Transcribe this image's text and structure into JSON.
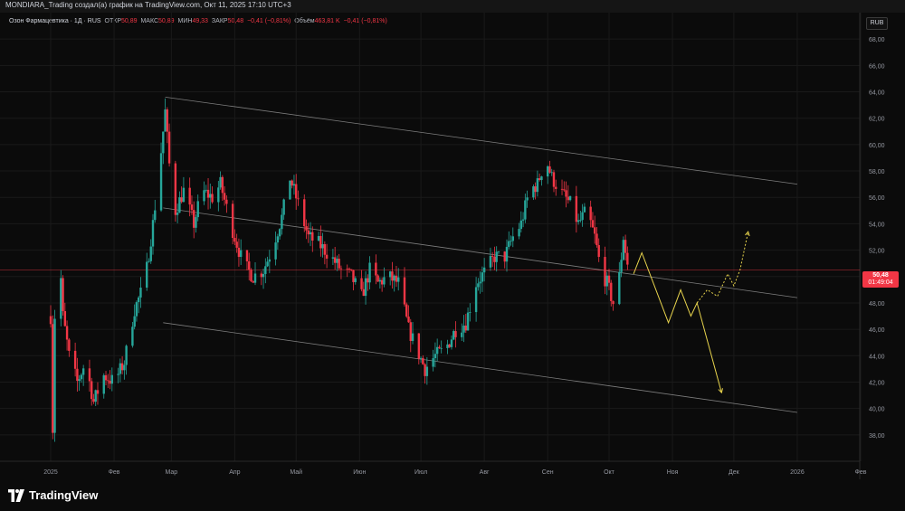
{
  "header": {
    "title": "MONDIARA_Trading создал(а) график на TradingView.com, Окт 11, 2025 17:10 UTC+3"
  },
  "legend": {
    "symbol": "Озон Фармацевтика · 1Д · RUS",
    "open_label": "ОТКР",
    "open": "50,89",
    "high_label": "МАКС",
    "high": "50,89",
    "low_label": "МИН",
    "low": "49,33",
    "close_label": "ЗАКР",
    "close": "50,48",
    "change": "−0,41 (−0,81%)",
    "volume_label": "Объём",
    "volume": "463,81 K",
    "volume_change": "−0,41 (−0,81%)"
  },
  "currency": "RUB",
  "last_price": {
    "price": "50,48",
    "countdown": "01:49:04"
  },
  "footer": {
    "logo_text": "TradingView"
  },
  "colors": {
    "up": "#26a69a",
    "down": "#f23645",
    "forecast": "#e8d44d",
    "channel": "#9a9a9a",
    "background": "#0b0b0b"
  },
  "chart_data": {
    "type": "candlestick",
    "y_axis": {
      "min": 36,
      "max": 70,
      "ticks": [
        "38,00",
        "40,00",
        "42,00",
        "44,00",
        "46,00",
        "48,00",
        "50,00",
        "52,00",
        "54,00",
        "56,00",
        "58,00",
        "60,00",
        "62,00",
        "64,00",
        "66,00",
        "68,00"
      ]
    },
    "x_axis": {
      "range": [
        "2025-01-01",
        "2026-02-01"
      ],
      "ticks": [
        {
          "date": "2025-01-01",
          "label": "2025"
        },
        {
          "date": "2025-02-01",
          "label": "Фев"
        },
        {
          "date": "2025-03-01",
          "label": "Мар"
        },
        {
          "date": "2025-04-01",
          "label": "Апр"
        },
        {
          "date": "2025-05-01",
          "label": "Май"
        },
        {
          "date": "2025-06-01",
          "label": "Июн"
        },
        {
          "date": "2025-07-01",
          "label": "Июл"
        },
        {
          "date": "2025-08-01",
          "label": "Авг"
        },
        {
          "date": "2025-09-01",
          "label": "Сен"
        },
        {
          "date": "2025-10-01",
          "label": "Окт"
        },
        {
          "date": "2025-11-01",
          "label": "Ноя"
        },
        {
          "date": "2025-12-01",
          "label": "Дек"
        },
        {
          "date": "2026-01-01",
          "label": "2026"
        },
        {
          "date": "2026-02-01",
          "label": "Фев"
        }
      ]
    },
    "price_anchors": [
      [
        "2025-01-01",
        47.0
      ],
      [
        "2025-01-02",
        38.5
      ],
      [
        "2025-01-04",
        55.5
      ],
      [
        "2025-01-07",
        47.0
      ],
      [
        "2025-01-10",
        44.0
      ],
      [
        "2025-01-14",
        42.0
      ],
      [
        "2025-01-18",
        43.5
      ],
      [
        "2025-01-22",
        40.5
      ],
      [
        "2025-01-27",
        42.5
      ],
      [
        "2025-02-01",
        42.0
      ],
      [
        "2025-02-06",
        43.5
      ],
      [
        "2025-02-11",
        47.5
      ],
      [
        "2025-02-16",
        49.5
      ],
      [
        "2025-02-20",
        54.0
      ],
      [
        "2025-02-23",
        58.0
      ],
      [
        "2025-02-26",
        62.5
      ],
      [
        "2025-02-28",
        58.5
      ],
      [
        "2025-03-03",
        55.0
      ],
      [
        "2025-03-07",
        56.5
      ],
      [
        "2025-03-12",
        54.0
      ],
      [
        "2025-03-16",
        56.5
      ],
      [
        "2025-03-21",
        56.0
      ],
      [
        "2025-03-25",
        57.0
      ],
      [
        "2025-03-30",
        54.0
      ],
      [
        "2025-04-05",
        51.0
      ],
      [
        "2025-04-10",
        50.0
      ],
      [
        "2025-04-15",
        50.5
      ],
      [
        "2025-04-19",
        52.0
      ],
      [
        "2025-04-24",
        54.5
      ],
      [
        "2025-04-28",
        57.5
      ],
      [
        "2025-05-03",
        55.0
      ],
      [
        "2025-05-07",
        53.0
      ],
      [
        "2025-05-12",
        52.5
      ],
      [
        "2025-05-18",
        51.5
      ],
      [
        "2025-05-23",
        50.5
      ],
      [
        "2025-05-28",
        50.0
      ],
      [
        "2025-06-02",
        48.5
      ],
      [
        "2025-06-06",
        50.5
      ],
      [
        "2025-06-10",
        49.5
      ],
      [
        "2025-06-15",
        50.0
      ],
      [
        "2025-06-20",
        49.5
      ],
      [
        "2025-06-25",
        46.0
      ],
      [
        "2025-06-29",
        44.5
      ],
      [
        "2025-07-03",
        43.0
      ],
      [
        "2025-07-08",
        44.0
      ],
      [
        "2025-07-13",
        44.5
      ],
      [
        "2025-07-18",
        46.0
      ],
      [
        "2025-07-23",
        46.5
      ],
      [
        "2025-07-28",
        49.5
      ],
      [
        "2025-08-02",
        50.5
      ],
      [
        "2025-08-06",
        51.5
      ],
      [
        "2025-08-11",
        51.5
      ],
      [
        "2025-08-15",
        53.0
      ],
      [
        "2025-08-19",
        54.0
      ],
      [
        "2025-08-23",
        56.5
      ],
      [
        "2025-08-27",
        57.0
      ],
      [
        "2025-08-31",
        59.0
      ],
      [
        "2025-09-03",
        57.5
      ],
      [
        "2025-09-07",
        56.5
      ],
      [
        "2025-09-12",
        55.5
      ],
      [
        "2025-09-16",
        54.0
      ],
      [
        "2025-09-20",
        55.0
      ],
      [
        "2025-09-24",
        53.0
      ],
      [
        "2025-09-27",
        50.5
      ],
      [
        "2025-09-30",
        49.5
      ],
      [
        "2025-10-03",
        48.0
      ],
      [
        "2025-10-06",
        50.0
      ],
      [
        "2025-10-08",
        53.0
      ],
      [
        "2025-10-10",
        50.9
      ],
      [
        "2025-10-11",
        50.48
      ]
    ],
    "forecast_path": [
      [
        "2025-10-13",
        50.2
      ],
      [
        "2025-10-17",
        51.8
      ],
      [
        "2025-10-30",
        46.5
      ],
      [
        "2025-11-05",
        49.0
      ],
      [
        "2025-11-10",
        47.0
      ],
      [
        "2025-11-13",
        48.0
      ],
      [
        "2025-11-25",
        41.2
      ]
    ],
    "forecast_alt_path": [
      [
        "2025-11-13",
        48.0
      ],
      [
        "2025-11-18",
        49.0
      ],
      [
        "2025-11-23",
        48.5
      ],
      [
        "2025-11-28",
        50.2
      ],
      [
        "2025-12-01",
        49.3
      ],
      [
        "2025-12-04",
        50.5
      ],
      [
        "2025-12-08",
        53.4
      ]
    ],
    "channel_lines": [
      {
        "name": "upper",
        "from": [
          "2025-02-26",
          63.6
        ],
        "to": [
          "2026-01-01",
          57.0
        ]
      },
      {
        "name": "middle",
        "from": [
          "2025-02-25",
          55.2
        ],
        "to": [
          "2026-01-01",
          48.4
        ]
      },
      {
        "name": "lower",
        "from": [
          "2025-02-25",
          46.5
        ],
        "to": [
          "2026-01-01",
          39.7
        ]
      }
    ],
    "last_price_line": 50.48
  }
}
